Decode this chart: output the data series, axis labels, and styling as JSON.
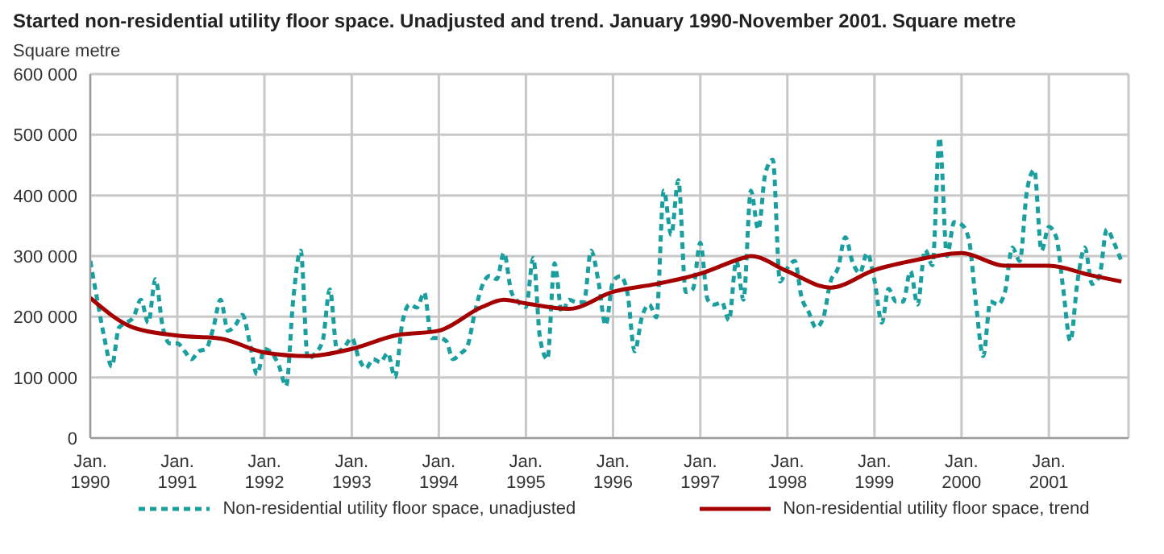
{
  "chart_data": {
    "type": "line",
    "title": "Started non-residential utility floor space. Unadjusted and trend. January 1990-November 2001.  Square metre",
    "ylabel": "Square metre",
    "xlim": [
      "1990-01",
      "2001-12"
    ],
    "xticks": [
      {
        "value": "1990-01",
        "label": "Jan. 1990"
      },
      {
        "value": "1991-01",
        "label": "Jan. 1991"
      },
      {
        "value": "1992-01",
        "label": "Jan. 1992"
      },
      {
        "value": "1993-01",
        "label": "Jan. 1993"
      },
      {
        "value": "1994-01",
        "label": "Jan. 1994"
      },
      {
        "value": "1995-01",
        "label": "Jan. 1995"
      },
      {
        "value": "1996-01",
        "label": "Jan. 1996"
      },
      {
        "value": "1997-01",
        "label": "Jan. 1997"
      },
      {
        "value": "1998-01",
        "label": "Jan. 1998"
      },
      {
        "value": "1999-01",
        "label": "Jan. 1999"
      },
      {
        "value": "2000-01",
        "label": "Jan. 2000"
      },
      {
        "value": "2001-01",
        "label": "Jan. 2001"
      }
    ],
    "ylim": [
      0,
      600000
    ],
    "yticks": [
      {
        "value": 0,
        "label": "0"
      },
      {
        "value": 100000,
        "label": "100 000"
      },
      {
        "value": 200000,
        "label": "200 000"
      },
      {
        "value": 300000,
        "label": "300 000"
      },
      {
        "value": 400000,
        "label": "400 000"
      },
      {
        "value": 500000,
        "label": "500 000"
      },
      {
        "value": 600000,
        "label": "600 000"
      }
    ],
    "grid": true,
    "legend": "bottom",
    "marker": "none",
    "series": [
      {
        "name": "Non-residential utility floor space, unadjusted",
        "color": "#1a9e9e",
        "line_style": "dashed",
        "x": [
          "1990-01",
          "1990-02",
          "1990-03",
          "1990-04",
          "1990-05",
          "1990-06",
          "1990-07",
          "1990-08",
          "1990-09",
          "1990-10",
          "1990-11",
          "1990-12",
          "1991-01",
          "1991-02",
          "1991-03",
          "1991-04",
          "1991-05",
          "1991-06",
          "1991-07",
          "1991-08",
          "1991-09",
          "1991-10",
          "1991-11",
          "1991-12",
          "1992-01",
          "1992-02",
          "1992-03",
          "1992-04",
          "1992-05",
          "1992-06",
          "1992-07",
          "1992-08",
          "1992-09",
          "1992-10",
          "1992-11",
          "1992-12",
          "1993-01",
          "1993-02",
          "1993-03",
          "1993-04",
          "1993-05",
          "1993-06",
          "1993-07",
          "1993-08",
          "1993-09",
          "1993-10",
          "1993-11",
          "1993-12",
          "1994-01",
          "1994-02",
          "1994-03",
          "1994-04",
          "1994-05",
          "1994-06",
          "1994-07",
          "1994-08",
          "1994-09",
          "1994-10",
          "1994-11",
          "1994-12",
          "1995-01",
          "1995-02",
          "1995-03",
          "1995-04",
          "1995-05",
          "1995-06",
          "1995-07",
          "1995-08",
          "1995-09",
          "1995-10",
          "1995-11",
          "1995-12",
          "1996-01",
          "1996-02",
          "1996-03",
          "1996-04",
          "1996-05",
          "1996-06",
          "1996-07",
          "1996-08",
          "1996-09",
          "1996-10",
          "1996-11",
          "1996-12",
          "1997-01",
          "1997-02",
          "1997-03",
          "1997-04",
          "1997-05",
          "1997-06",
          "1997-07",
          "1997-08",
          "1997-09",
          "1997-10",
          "1997-11",
          "1997-12",
          "1998-01",
          "1998-02",
          "1998-03",
          "1998-04",
          "1998-05",
          "1998-06",
          "1998-07",
          "1998-08",
          "1998-09",
          "1998-10",
          "1998-11",
          "1998-12",
          "1999-01",
          "1999-02",
          "1999-03",
          "1999-04",
          "1999-05",
          "1999-06",
          "1999-07",
          "1999-08",
          "1999-09",
          "1999-10",
          "1999-11",
          "1999-12",
          "2000-01",
          "2000-02",
          "2000-03",
          "2000-04",
          "2000-05",
          "2000-06",
          "2000-07",
          "2000-08",
          "2000-09",
          "2000-10",
          "2000-11",
          "2000-12",
          "2001-01",
          "2001-02",
          "2001-03",
          "2001-04",
          "2001-05",
          "2001-06",
          "2001-07",
          "2001-08",
          "2001-09",
          "2001-10",
          "2001-11"
        ],
        "values": [
          292000,
          224000,
          165000,
          118000,
          182000,
          190000,
          199000,
          228000,
          190000,
          262000,
          182000,
          156000,
          156000,
          143000,
          130000,
          143000,
          147000,
          182000,
          228000,
          177000,
          186000,
          203000,
          156000,
          105000,
          147000,
          140000,
          120000,
          86000,
          230000,
          309000,
          130000,
          140000,
          160000,
          245000,
          143000,
          150000,
          165000,
          130000,
          115000,
          130000,
          125000,
          140000,
          100000,
          190000,
          220000,
          215000,
          240000,
          165000,
          165000,
          160000,
          130000,
          139000,
          152000,
          207000,
          250000,
          267000,
          262000,
          305000,
          241000,
          224000,
          216000,
          297000,
          165000,
          130000,
          288000,
          207000,
          228000,
          224000,
          224000,
          309000,
          258000,
          186000,
          258000,
          267000,
          241000,
          143000,
          199000,
          220000,
          199000,
          408000,
          335000,
          425000,
          241000,
          246000,
          322000,
          228000,
          220000,
          224000,
          194000,
          292000,
          228000,
          408000,
          344000,
          437000,
          459000,
          258000,
          280000,
          292000,
          233000,
          207000,
          182000,
          199000,
          258000,
          280000,
          331000,
          290000,
          272000,
          305000,
          260000,
          190000,
          246000,
          225000,
          225000,
          275000,
          220000,
          310000,
          285000,
          495000,
          300000,
          356000,
          352000,
          327000,
          224000,
          135000,
          225000,
          220000,
          241000,
          314000,
          292000,
          407000,
          442000,
          309000,
          348000,
          331000,
          250000,
          160000,
          258000,
          314000,
          254000,
          267000,
          344000,
          322000,
          292000
        ]
      },
      {
        "name": "Non-residential utility floor space, trend",
        "color": "#a50000",
        "line_style": "solid",
        "x": [
          "1990-01",
          "1990-07",
          "1991-01",
          "1991-07",
          "1992-01",
          "1992-07",
          "1993-01",
          "1993-07",
          "1994-01",
          "1994-07",
          "1994-10",
          "1995-01",
          "1995-07",
          "1996-01",
          "1996-07",
          "1997-01",
          "1997-07",
          "1997-08",
          "1998-01",
          "1998-07",
          "1999-01",
          "1999-07",
          "2000-01",
          "2000-07",
          "2001-01",
          "2001-07",
          "2001-11"
        ],
        "values": [
          231000,
          182000,
          169000,
          164000,
          141000,
          135000,
          147000,
          169000,
          177000,
          216000,
          228000,
          222000,
          213000,
          241000,
          254000,
          271000,
          297000,
          300000,
          275000,
          248000,
          277000,
          294000,
          305000,
          284000,
          284000,
          268000,
          258000
        ]
      }
    ]
  }
}
